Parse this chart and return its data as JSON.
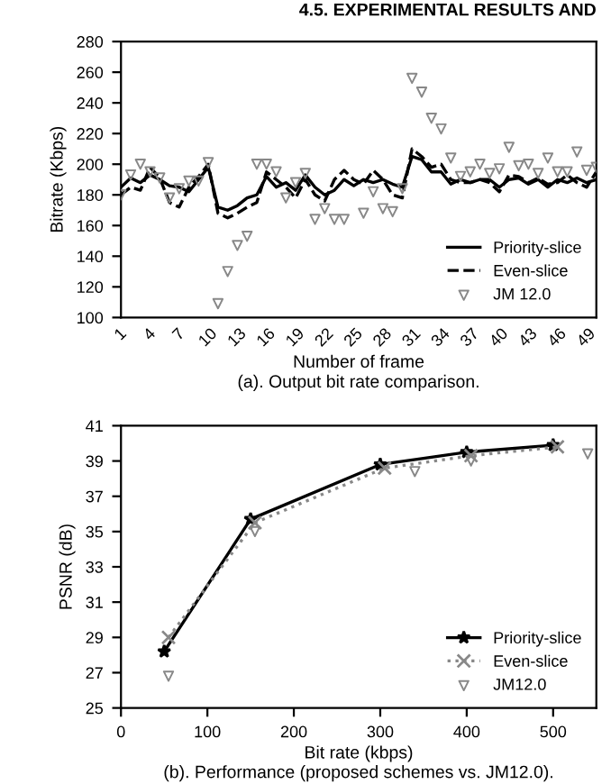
{
  "chart_data": [
    {
      "type": "line",
      "xlabel": "Number of frame",
      "ylabel": "Bitrate (Kbps)",
      "categories": [
        "1",
        null,
        null,
        "4",
        null,
        null,
        "7",
        null,
        null,
        "10",
        null,
        null,
        "13",
        null,
        null,
        "16",
        null,
        null,
        "19",
        null,
        null,
        "22",
        null,
        null,
        "25",
        null,
        null,
        "28",
        null,
        null,
        "31",
        null,
        null,
        "34",
        null,
        null,
        "37",
        null,
        null,
        "40",
        null,
        null,
        "43",
        null,
        null,
        "46",
        null,
        null,
        "49",
        null
      ],
      "series": [
        {
          "name": "Priority-slice",
          "color": "#000000",
          "line_style": "solid",
          "marker": "none",
          "values": [
            185,
            191,
            188,
            193,
            190,
            186,
            185,
            182,
            190,
            198,
            172,
            170,
            173,
            178,
            180,
            192,
            185,
            188,
            183,
            193,
            185,
            180,
            183,
            190,
            186,
            190,
            188,
            190,
            187,
            185,
            205,
            203,
            195,
            195,
            187,
            190,
            188,
            190,
            190,
            185,
            190,
            191,
            187,
            190,
            185,
            190,
            188,
            191,
            188,
            190
          ]
        },
        {
          "name": "Even-slice",
          "color": "#000000",
          "line_style": "dashed",
          "marker": "none",
          "values": [
            180,
            185,
            183,
            198,
            191,
            175,
            172,
            185,
            192,
            200,
            168,
            165,
            168,
            172,
            175,
            195,
            190,
            185,
            178,
            190,
            180,
            176,
            190,
            196,
            190,
            187,
            196,
            190,
            180,
            178,
            210,
            205,
            198,
            200,
            190,
            188,
            188,
            190,
            188,
            182,
            193,
            192,
            188,
            191,
            187,
            188,
            193,
            188,
            185,
            195
          ]
        },
        {
          "name": "JM 12.0",
          "type": "scatter",
          "color": "#888888",
          "marker": "triangle",
          "values": [
            180,
            193,
            200,
            195,
            191,
            178,
            184,
            189,
            189,
            201,
            109,
            130,
            147,
            153,
            200,
            200,
            195,
            178,
            188,
            194,
            164,
            171,
            164,
            164,
            null,
            168,
            182,
            171,
            169,
            184,
            256,
            247,
            230,
            223,
            204,
            192,
            195,
            200,
            194,
            197,
            211,
            199,
            200,
            194,
            204,
            195,
            195,
            208,
            196,
            198
          ]
        }
      ],
      "ylim": [
        100,
        280
      ],
      "yticks": [
        100,
        120,
        140,
        160,
        180,
        200,
        220,
        240,
        260,
        280
      ],
      "legend": "bottom right",
      "annotations": [
        "4.5. EXPERIMENTAL RESULTS AND",
        "(a). Output bit rate comparison."
      ]
    },
    {
      "type": "line",
      "xlabel": "Bit rate (kbps)",
      "ylabel": "PSNR (dB)",
      "series": [
        {
          "name": "Priority-slice",
          "color": "#000000",
          "line_style": "solid",
          "marker": "star",
          "x": [
            50,
            150,
            300,
            400,
            500
          ],
          "values": [
            28.2,
            35.7,
            38.8,
            39.5,
            39.9
          ]
        },
        {
          "name": "Even-slice",
          "color": "#888888",
          "line_style": "dotted",
          "marker": "cross",
          "x": [
            55,
            155,
            305,
            405,
            505
          ],
          "values": [
            29.0,
            35.5,
            38.6,
            39.3,
            39.8
          ]
        },
        {
          "name": "JM12.0",
          "type": "scatter",
          "color": "#888888",
          "marker": "triangle",
          "x": [
            55,
            155,
            340,
            405,
            540
          ],
          "values": [
            26.8,
            35.0,
            38.4,
            39.0,
            39.4
          ]
        }
      ],
      "xlim": [
        0,
        550
      ],
      "xticks": [
        0,
        100,
        200,
        300,
        400,
        500
      ],
      "ylim": [
        25,
        41
      ],
      "yticks": [
        25,
        27,
        29,
        31,
        33,
        35,
        37,
        39,
        41
      ],
      "legend": "bottom right",
      "annotations": [
        "(b). Performance (proposed schemes vs. JM12.0)."
      ]
    }
  ]
}
